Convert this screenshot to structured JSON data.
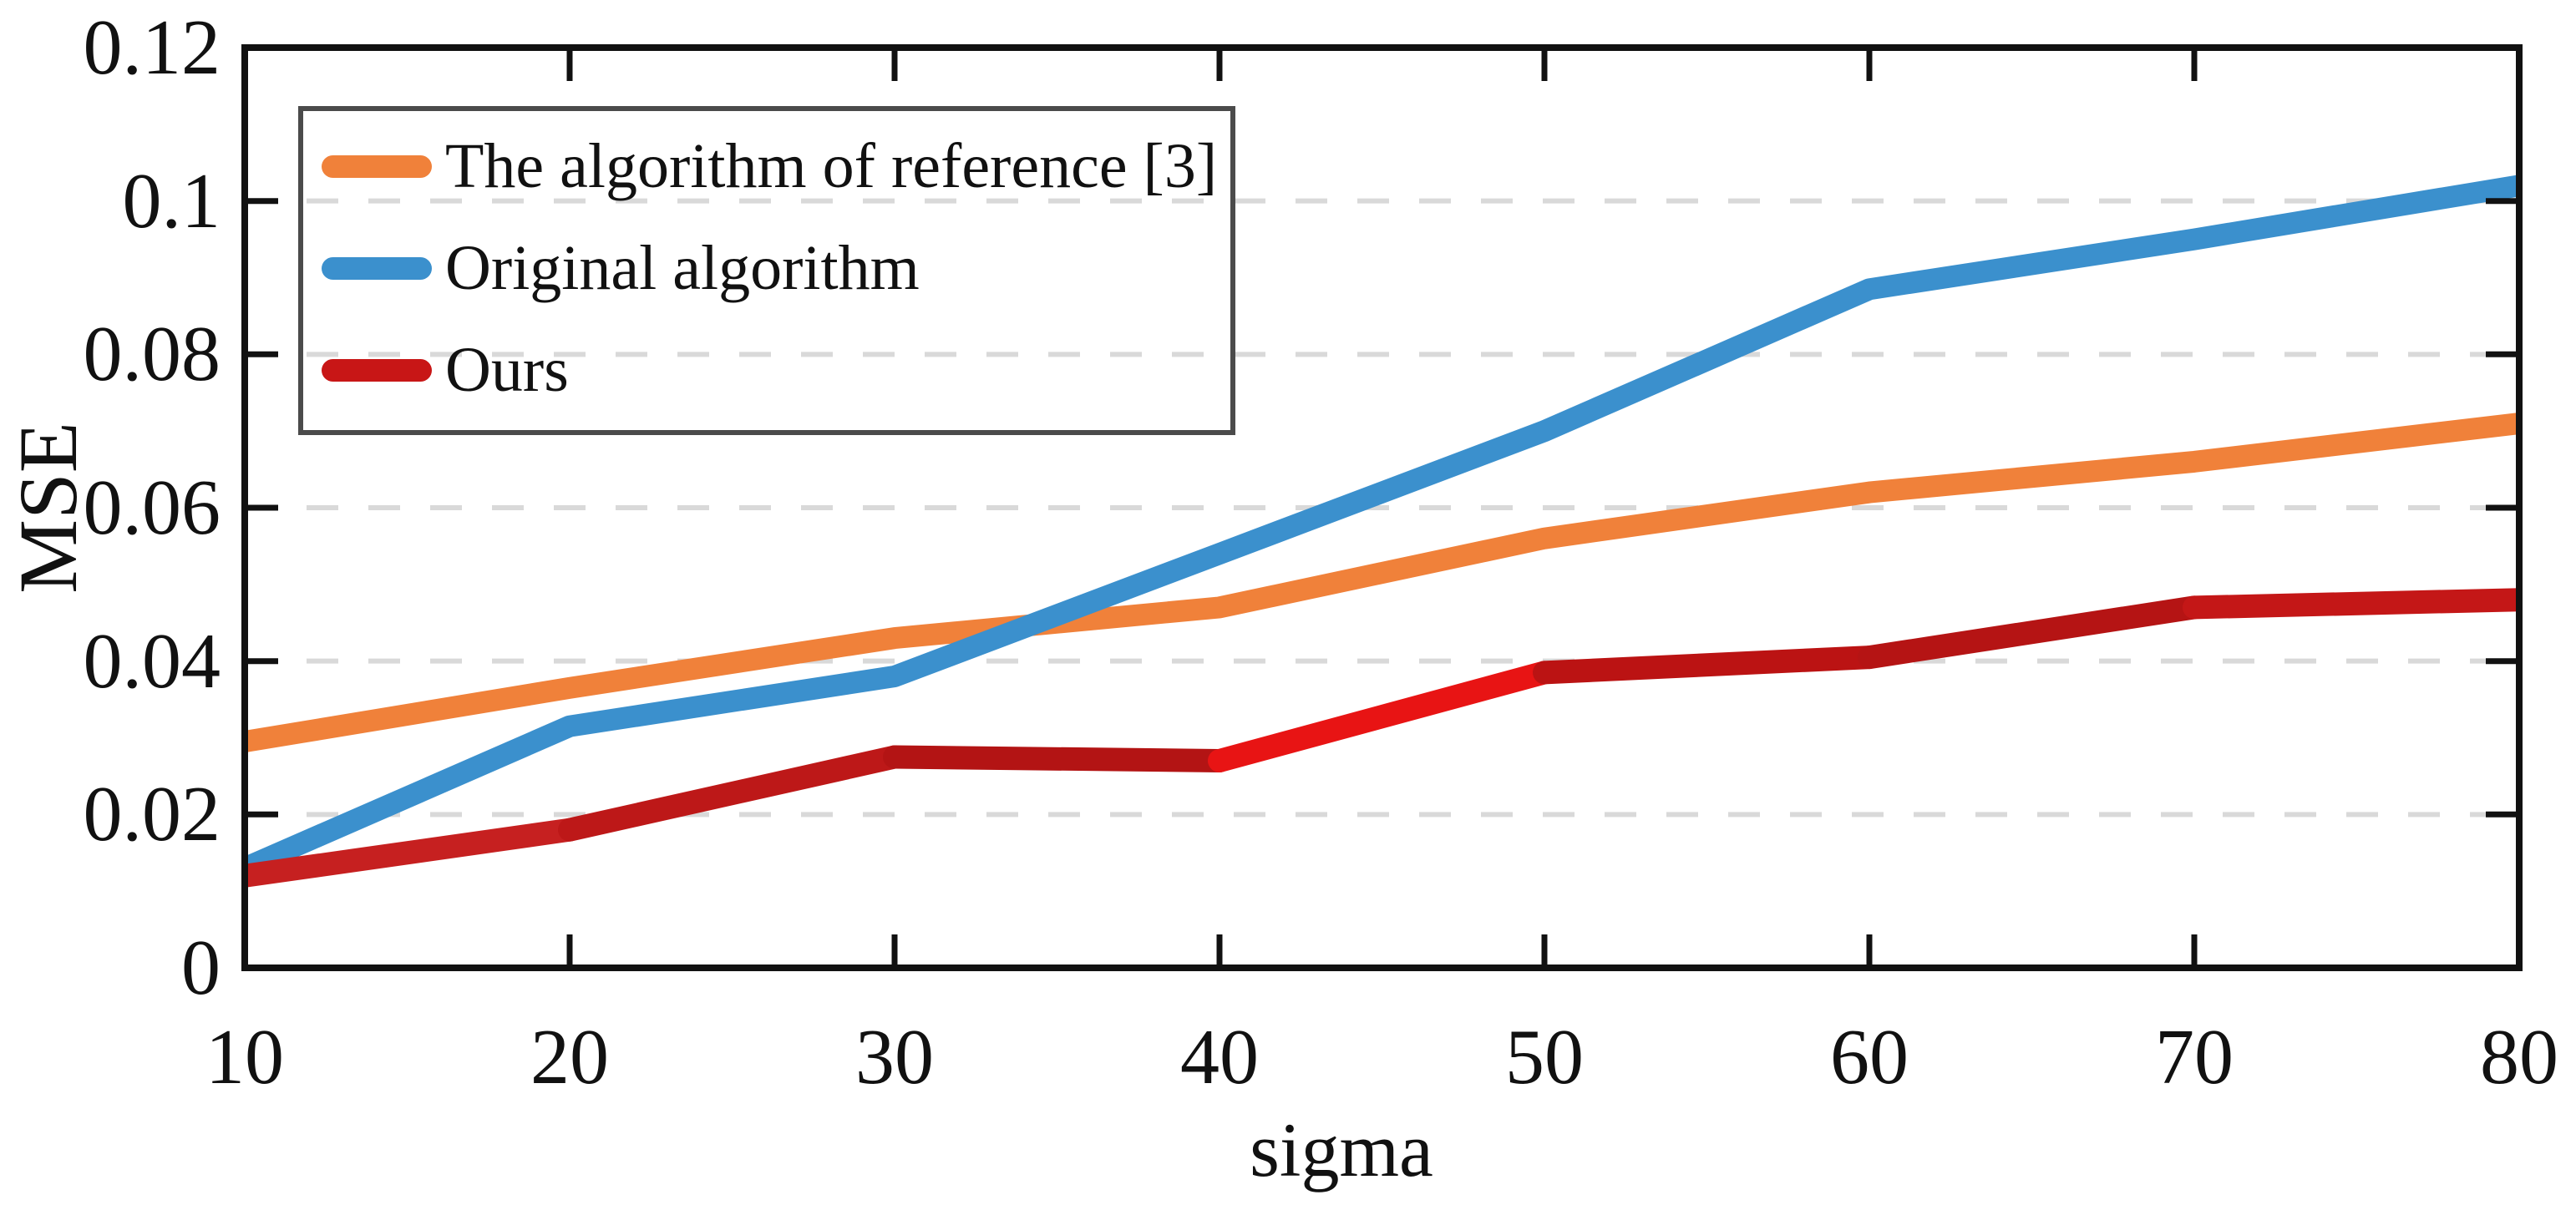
{
  "chart_data": {
    "type": "line",
    "title": "",
    "xlabel": "sigma",
    "ylabel": "MSE",
    "xlim": [
      10,
      80
    ],
    "ylim": [
      0,
      0.12
    ],
    "x": [
      10,
      20,
      30,
      40,
      50,
      60,
      70,
      80
    ],
    "x_tick_labels": [
      "10",
      "20",
      "30",
      "40",
      "50",
      "60",
      "70",
      "80"
    ],
    "y_ticks": [
      0,
      0.02,
      0.04,
      0.06,
      0.08,
      0.1,
      0.12
    ],
    "y_tick_labels": [
      "0",
      "0.02",
      "0.04",
      "0.06",
      "0.08",
      "0.1",
      "0.12"
    ],
    "grid": {
      "axis": "y",
      "values": [
        0.02,
        0.04,
        0.06,
        0.08,
        0.1
      ],
      "style": "dashed",
      "color": "#d9d9d9"
    },
    "frame_color": "#111111",
    "legend": {
      "position": "top-left",
      "border_color": "#4b4b4b",
      "background": "transparent"
    },
    "series": [
      {
        "name": "The algorithm of reference [3]",
        "color": "#f0813a",
        "values": [
          0.0295,
          0.0365,
          0.043,
          0.047,
          0.056,
          0.062,
          0.066,
          0.071
        ]
      },
      {
        "name": "Original algorithm",
        "color": "#3b90cd",
        "values": [
          0.013,
          0.0315,
          0.038,
          0.054,
          0.07,
          0.0885,
          0.095,
          0.102
        ]
      },
      {
        "name": "Ours",
        "color": "#c81616",
        "segment_colors": [
          "#c62020",
          "#bd1818",
          "#b31414",
          "#e81414",
          "#bb1313",
          "#b51414",
          "#c41717"
        ],
        "values": [
          0.012,
          0.018,
          0.0275,
          0.027,
          0.0385,
          0.0405,
          0.047,
          0.048
        ]
      }
    ]
  }
}
